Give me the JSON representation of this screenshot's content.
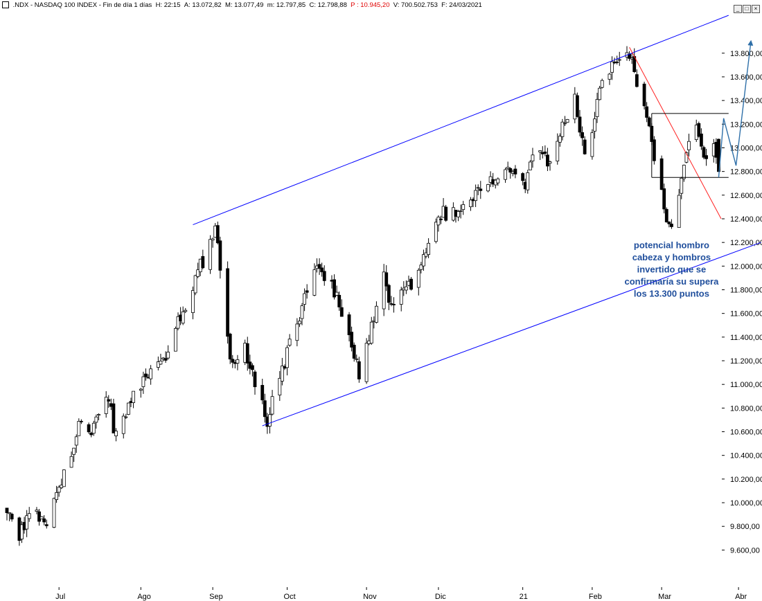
{
  "header": {
    "symbol": ".NDX - NASDAQ 100 INDEX",
    "period": "Fin de día 1 días",
    "h_label": "H:",
    "h_value": "22:15",
    "a_label": "A:",
    "a_value": "13.072,82",
    "m_label": "M:",
    "m_value": "13.077,49",
    "mn_label": "m:",
    "mn_value": "12.797,85",
    "c_label": "C:",
    "c_value": "12.798,88",
    "p_label": "P :",
    "p_value": "10.945,20",
    "v_label": "V:",
    "v_value": "700.502.753",
    "f_label": "F:",
    "f_value": "24/03/2021",
    "colors": {
      "text": "#000000",
      "p_value": "#e00000"
    },
    "icons": [
      "chart-menu-icon",
      "minimize-icon",
      "maximize-icon",
      "close-icon"
    ]
  },
  "chart_data": {
    "type": "candlestick",
    "x_start": "2020-06-10",
    "x_axis_ticks": [
      {
        "label": "Jul",
        "date": "2020-07-01"
      },
      {
        "label": "Ago",
        "date": "2020-08-03"
      },
      {
        "label": "Sep",
        "date": "2020-09-01"
      },
      {
        "label": "Oct",
        "date": "2020-10-01"
      },
      {
        "label": "Nov",
        "date": "2020-11-02"
      },
      {
        "label": "Dic",
        "date": "2020-12-01"
      },
      {
        "label": "21",
        "date": "2021-01-04"
      },
      {
        "label": "Feb",
        "date": "2021-02-01"
      },
      {
        "label": "Mar",
        "date": "2021-03-01"
      },
      {
        "label": "Abr",
        "date": "2021-04-01"
      }
    ],
    "y_axis": {
      "min": 9450,
      "max": 14150,
      "position": "right",
      "ticks": [
        {
          "value": 9600,
          "label": "9.600,00"
        },
        {
          "value": 9800,
          "label": "9.800,00"
        },
        {
          "value": 10000,
          "label": "10.000,00"
        },
        {
          "value": 10200,
          "label": "10.200,00"
        },
        {
          "value": 10400,
          "label": "10.400,00"
        },
        {
          "value": 10600,
          "label": "10.600,00"
        },
        {
          "value": 10800,
          "label": "10.800,00"
        },
        {
          "value": 11000,
          "label": "11.000,00"
        },
        {
          "value": 11200,
          "label": "11.200,00"
        },
        {
          "value": 11400,
          "label": "11.400,00"
        },
        {
          "value": 11600,
          "label": "11.600,00"
        },
        {
          "value": 11800,
          "label": "11.800,00"
        },
        {
          "value": 12000,
          "label": "12.000,00"
        },
        {
          "value": 12200,
          "label": "12.200,00"
        },
        {
          "value": 12400,
          "label": "12.400,00"
        },
        {
          "value": 12600,
          "label": "12.600,00"
        },
        {
          "value": 12800,
          "label": "12.800,00"
        },
        {
          "value": 13000,
          "label": "13.000,00"
        },
        {
          "value": 13200,
          "label": "13.200,00"
        },
        {
          "value": 13400,
          "label": "13.400,00"
        },
        {
          "value": 13600,
          "label": "13.600,00"
        },
        {
          "value": 13800,
          "label": "13.800,00"
        }
      ]
    },
    "grid": false,
    "colors": {
      "up_fill": "#ffffff",
      "down_fill": "#000000",
      "wick": "#000000",
      "channel": "#0000ff",
      "downtrend": "#ff2020",
      "range_box": "#000000",
      "projection": "#2e6fa8",
      "annotation_text": "#1f4e9c"
    },
    "anchors": [
      {
        "date": "2020-06-10",
        "close": 9950
      },
      {
        "date": "2020-06-15",
        "close": 9700
      },
      {
        "date": "2020-06-18",
        "close": 9900
      },
      {
        "date": "2020-06-26",
        "close": 9850
      },
      {
        "date": "2020-07-06",
        "close": 10400
      },
      {
        "date": "2020-07-10",
        "close": 10700
      },
      {
        "date": "2020-07-13",
        "close": 10550
      },
      {
        "date": "2020-07-20",
        "close": 10950
      },
      {
        "date": "2020-07-24",
        "close": 10550
      },
      {
        "date": "2020-07-31",
        "close": 10900
      },
      {
        "date": "2020-08-12",
        "close": 11200
      },
      {
        "date": "2020-08-28",
        "close": 12050
      },
      {
        "date": "2020-09-02",
        "close": 12350
      },
      {
        "date": "2020-09-08",
        "close": 11150
      },
      {
        "date": "2020-09-14",
        "close": 11300
      },
      {
        "date": "2020-09-23",
        "close": 10700
      },
      {
        "date": "2020-10-01",
        "close": 11250
      },
      {
        "date": "2020-10-12",
        "close": 12000
      },
      {
        "date": "2020-10-20",
        "close": 11800
      },
      {
        "date": "2020-10-29",
        "close": 11200
      },
      {
        "date": "2020-10-30",
        "close": 11050
      },
      {
        "date": "2020-11-04",
        "close": 11500
      },
      {
        "date": "2020-11-09",
        "close": 12000
      },
      {
        "date": "2020-11-11",
        "close": 11700
      },
      {
        "date": "2020-11-20",
        "close": 11850
      },
      {
        "date": "2020-12-01",
        "close": 12450
      },
      {
        "date": "2020-12-09",
        "close": 12450
      },
      {
        "date": "2020-12-17",
        "close": 12650
      },
      {
        "date": "2020-12-29",
        "close": 12850
      },
      {
        "date": "2021-01-05",
        "close": 12700
      },
      {
        "date": "2021-01-08",
        "close": 13000
      },
      {
        "date": "2021-01-14",
        "close": 12900
      },
      {
        "date": "2021-01-25",
        "close": 13400
      },
      {
        "date": "2021-01-29",
        "close": 12900
      },
      {
        "date": "2021-02-05",
        "close": 13550
      },
      {
        "date": "2021-02-12",
        "close": 13800
      },
      {
        "date": "2021-02-16",
        "close": 13750
      },
      {
        "date": "2021-02-18",
        "close": 13650
      },
      {
        "date": "2021-02-23",
        "close": 13250
      },
      {
        "date": "2021-02-26",
        "close": 12900
      },
      {
        "date": "2021-03-04",
        "close": 12300
      },
      {
        "date": "2021-03-09",
        "close": 12700
      },
      {
        "date": "2021-03-12",
        "close": 13000
      },
      {
        "date": "2021-03-15",
        "close": 13200
      },
      {
        "date": "2021-03-18",
        "close": 12900
      },
      {
        "date": "2021-03-22",
        "close": 13050
      },
      {
        "date": "2021-03-24",
        "close": 12798.88
      }
    ],
    "annotations": [
      {
        "type": "line",
        "name": "upper-channel-line",
        "color": "#0000ff",
        "points": [
          {
            "date": "2020-08-24",
            "value": 12350
          },
          {
            "date": "2021-03-28",
            "value": 14120
          }
        ]
      },
      {
        "type": "line",
        "name": "lower-channel-line",
        "color": "#0000ff",
        "points": [
          {
            "date": "2020-09-21",
            "value": 10650
          },
          {
            "date": "2021-04-10",
            "value": 12200
          }
        ]
      },
      {
        "type": "line",
        "name": "downtrend-line",
        "color": "#ff2020",
        "points": [
          {
            "date": "2021-02-16",
            "value": 13850
          },
          {
            "date": "2021-03-25",
            "value": 12400
          }
        ]
      },
      {
        "type": "line",
        "name": "range-top-line",
        "color": "#000000",
        "points": [
          {
            "date": "2021-02-25",
            "value": 13290
          },
          {
            "date": "2021-03-28",
            "value": 13290
          }
        ]
      },
      {
        "type": "line",
        "name": "range-bottom-line",
        "color": "#000000",
        "points": [
          {
            "date": "2021-02-25",
            "value": 12750
          },
          {
            "date": "2021-03-28",
            "value": 12750
          }
        ]
      },
      {
        "type": "line",
        "name": "range-left-edge",
        "color": "#000000",
        "points": [
          {
            "date": "2021-02-25",
            "value": 13290
          },
          {
            "date": "2021-02-25",
            "value": 12750
          }
        ]
      },
      {
        "type": "arrow",
        "name": "projection-arrow",
        "color": "#2e6fa8",
        "points": [
          {
            "date": "2021-03-24",
            "value": 12750
          },
          {
            "date": "2021-03-26",
            "value": 13250
          },
          {
            "date": "2021-03-31",
            "value": 12850
          },
          {
            "date": "2021-04-06",
            "value": 13900
          }
        ]
      }
    ],
    "text_annotation": {
      "lines": [
        "potencial hombro",
        "cabeza y hombros",
        "invertido que se",
        "confirmaría su supera",
        "los 13.300 puntos"
      ]
    }
  }
}
